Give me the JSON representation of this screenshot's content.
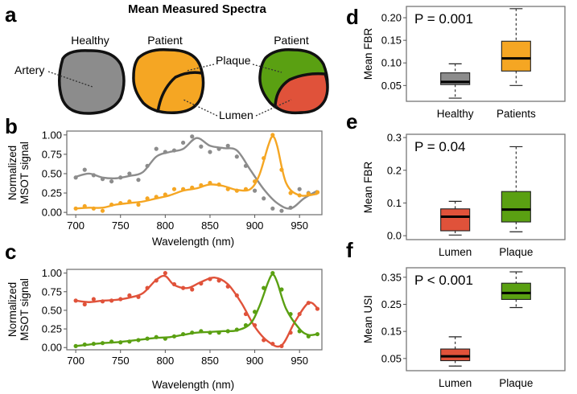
{
  "figure_title": "Mean Measured Spectra",
  "panel_letters": {
    "a": "a",
    "b": "b",
    "c": "c",
    "d": "d",
    "e": "e",
    "f": "f"
  },
  "colors": {
    "healthy": "#8c8c8c",
    "patient_orange": "#f5a623",
    "plaque": "#5aa012",
    "lumen": "#e0523a",
    "axis": "#333333",
    "frame": "#777777"
  },
  "diagram": {
    "healthy_label": "Healthy",
    "patient_label_1": "Patient",
    "patient_label_2": "Patient",
    "artery_label": "Artery",
    "plaque_label": "Plaque",
    "lumen_label": "Lumen"
  },
  "chart_data": [
    {
      "id": "b",
      "type": "line",
      "xlabel": "Wavelength (nm)",
      "ylabel": [
        "Normalized",
        "MSOT signal"
      ],
      "xlim": [
        690,
        975
      ],
      "ylim": [
        -0.03,
        1.05
      ],
      "xticks": [
        700,
        750,
        800,
        850,
        900,
        950
      ],
      "xtick_labels": [
        "700",
        "750",
        "800",
        "850",
        "900",
        "950"
      ],
      "yticks": [
        0,
        0.25,
        0.5,
        0.75,
        1
      ],
      "ytick_labels": [
        "0.00",
        "0.25",
        "0.50",
        "0.75",
        "1.00"
      ],
      "series": [
        {
          "name": "Healthy",
          "color": "#8c8c8c",
          "x": [
            700,
            710,
            720,
            730,
            740,
            750,
            760,
            770,
            780,
            790,
            800,
            810,
            820,
            830,
            840,
            850,
            860,
            870,
            880,
            890,
            900,
            910,
            920,
            930,
            940,
            950,
            960,
            970
          ],
          "y": [
            0.45,
            0.55,
            0.48,
            0.43,
            0.4,
            0.45,
            0.5,
            0.42,
            0.6,
            0.82,
            0.78,
            0.8,
            0.9,
            0.98,
            0.85,
            0.78,
            0.82,
            0.86,
            0.72,
            0.6,
            0.28,
            0.18,
            0.05,
            0.02,
            0.06,
            0.3,
            0.25,
            0.26
          ],
          "curve_x": [
            700,
            715,
            730,
            745,
            760,
            775,
            790,
            805,
            820,
            835,
            850,
            865,
            880,
            895,
            910,
            925,
            940,
            955,
            970
          ],
          "curve_y": [
            0.46,
            0.5,
            0.45,
            0.44,
            0.47,
            0.52,
            0.72,
            0.78,
            0.82,
            0.96,
            0.86,
            0.83,
            0.8,
            0.55,
            0.3,
            0.12,
            0.05,
            0.18,
            0.28
          ]
        },
        {
          "name": "Patient",
          "color": "#f5a623",
          "x": [
            700,
            710,
            720,
            730,
            740,
            750,
            760,
            770,
            780,
            790,
            800,
            810,
            820,
            830,
            840,
            850,
            860,
            870,
            880,
            890,
            900,
            910,
            920,
            930,
            940,
            950,
            960,
            970
          ],
          "y": [
            0.05,
            0.08,
            0.05,
            0.02,
            0.1,
            0.12,
            0.14,
            0.1,
            0.18,
            0.2,
            0.23,
            0.3,
            0.3,
            0.32,
            0.35,
            0.38,
            0.36,
            0.3,
            0.28,
            0.3,
            0.4,
            0.7,
            1.0,
            0.55,
            0.25,
            0.22,
            0.24,
            0.26
          ],
          "curve_x": [
            700,
            715,
            730,
            745,
            760,
            775,
            790,
            805,
            820,
            835,
            850,
            865,
            880,
            895,
            905,
            915,
            920,
            925,
            935,
            950,
            970
          ],
          "curve_y": [
            0.05,
            0.06,
            0.06,
            0.1,
            0.12,
            0.14,
            0.18,
            0.22,
            0.28,
            0.31,
            0.36,
            0.34,
            0.29,
            0.3,
            0.48,
            0.86,
            0.98,
            0.86,
            0.38,
            0.22,
            0.24
          ]
        }
      ]
    },
    {
      "id": "c",
      "type": "line",
      "xlabel": "Wavelength (nm)",
      "ylabel": [
        "Normalized",
        "MSOT signal"
      ],
      "xlim": [
        690,
        975
      ],
      "ylim": [
        -0.03,
        1.05
      ],
      "xticks": [
        700,
        750,
        800,
        850,
        900,
        950
      ],
      "xtick_labels": [
        "700",
        "750",
        "800",
        "850",
        "900",
        "950"
      ],
      "yticks": [
        0,
        0.25,
        0.5,
        0.75,
        1
      ],
      "ytick_labels": [
        "0.00",
        "0.25",
        "0.50",
        "0.75",
        "1.00"
      ],
      "series": [
        {
          "name": "Lumen",
          "color": "#e0523a",
          "x": [
            700,
            710,
            720,
            730,
            740,
            750,
            760,
            770,
            780,
            790,
            800,
            810,
            820,
            830,
            840,
            850,
            860,
            870,
            880,
            890,
            900,
            910,
            920,
            930,
            940,
            950,
            960,
            970
          ],
          "y": [
            0.63,
            0.58,
            0.65,
            0.62,
            0.63,
            0.65,
            0.7,
            0.68,
            0.8,
            0.9,
            1.0,
            0.85,
            0.8,
            0.78,
            0.86,
            0.92,
            0.9,
            0.82,
            0.7,
            0.45,
            0.3,
            0.1,
            0.05,
            0.02,
            0.2,
            0.45,
            0.6,
            0.52
          ],
          "curve_x": [
            700,
            715,
            730,
            745,
            760,
            775,
            790,
            800,
            810,
            825,
            840,
            855,
            870,
            885,
            900,
            915,
            930,
            945,
            960,
            970
          ],
          "curve_y": [
            0.63,
            0.61,
            0.63,
            0.64,
            0.67,
            0.73,
            0.91,
            0.96,
            0.84,
            0.8,
            0.88,
            0.94,
            0.85,
            0.6,
            0.28,
            0.08,
            0.03,
            0.35,
            0.6,
            0.53
          ]
        },
        {
          "name": "Plaque",
          "color": "#5aa012",
          "x": [
            700,
            710,
            720,
            730,
            740,
            750,
            760,
            770,
            780,
            790,
            800,
            810,
            820,
            830,
            840,
            850,
            860,
            870,
            880,
            890,
            900,
            910,
            920,
            930,
            940,
            950,
            960,
            970
          ],
          "y": [
            0.02,
            0.04,
            0.05,
            0.06,
            0.08,
            0.07,
            0.08,
            0.1,
            0.12,
            0.14,
            0.12,
            0.15,
            0.18,
            0.2,
            0.22,
            0.2,
            0.2,
            0.22,
            0.24,
            0.3,
            0.48,
            0.8,
            1.0,
            0.78,
            0.45,
            0.22,
            0.15,
            0.18
          ],
          "curve_x": [
            700,
            715,
            730,
            745,
            760,
            775,
            790,
            805,
            820,
            835,
            850,
            865,
            880,
            895,
            905,
            915,
            920,
            925,
            935,
            950,
            960,
            970
          ],
          "curve_y": [
            0.02,
            0.04,
            0.06,
            0.07,
            0.09,
            0.11,
            0.13,
            0.14,
            0.17,
            0.2,
            0.21,
            0.22,
            0.23,
            0.32,
            0.55,
            0.88,
            0.98,
            0.88,
            0.52,
            0.25,
            0.17,
            0.18
          ]
        }
      ]
    },
    {
      "id": "d",
      "type": "box",
      "ylabel": "Mean FBR",
      "ylim": [
        0.015,
        0.225
      ],
      "yticks": [
        0.05,
        0.1,
        0.15,
        0.2
      ],
      "ytick_labels": [
        "0.05",
        "0.10",
        "0.15",
        "0.20"
      ],
      "pvalue": "P = 0.001",
      "groups": [
        {
          "name": "Healthy",
          "color": "#8c8c8c",
          "min": 0.022,
          "q1": 0.052,
          "median": 0.058,
          "q3": 0.078,
          "max": 0.098
        },
        {
          "name": "Patients",
          "color": "#f5a623",
          "min": 0.05,
          "q1": 0.082,
          "median": 0.11,
          "q3": 0.148,
          "max": 0.22
        }
      ]
    },
    {
      "id": "e",
      "type": "box",
      "ylabel": "Mean FBR",
      "ylim": [
        -0.012,
        0.31
      ],
      "yticks": [
        0,
        0.1,
        0.2,
        0.3
      ],
      "ytick_labels": [
        "0.0",
        "0.1",
        "0.2",
        "0.3"
      ],
      "pvalue": "P = 0.04",
      "groups": [
        {
          "name": "Lumen",
          "color": "#e0523a",
          "min": 0.002,
          "q1": 0.015,
          "median": 0.058,
          "q3": 0.082,
          "max": 0.105
        },
        {
          "name": "Plaque",
          "color": "#5aa012",
          "min": 0.012,
          "q1": 0.042,
          "median": 0.08,
          "q3": 0.135,
          "max": 0.272
        }
      ]
    },
    {
      "id": "f",
      "type": "box",
      "ylabel": "Mean USI",
      "ylim": [
        0.005,
        0.385
      ],
      "yticks": [
        0.05,
        0.15,
        0.25,
        0.35
      ],
      "ytick_labels": [
        "0.05",
        "0.15",
        "0.25",
        "0.35"
      ],
      "pvalue": "P < 0.001",
      "groups": [
        {
          "name": "Lumen",
          "color": "#e0523a",
          "min": 0.022,
          "q1": 0.042,
          "median": 0.058,
          "q3": 0.085,
          "max": 0.13
        },
        {
          "name": "Plaque",
          "color": "#5aa012",
          "min": 0.238,
          "q1": 0.268,
          "median": 0.292,
          "q3": 0.328,
          "max": 0.37
        }
      ]
    }
  ]
}
